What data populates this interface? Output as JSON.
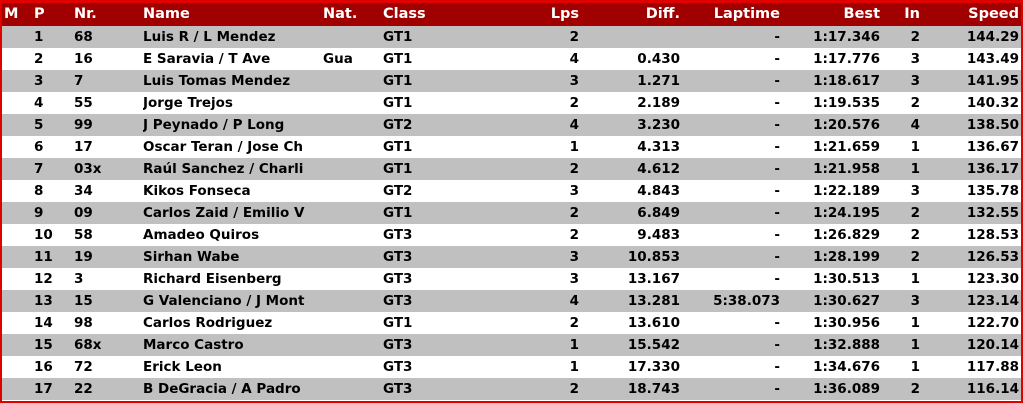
{
  "colors": {
    "header_bg": "#a00000",
    "border": "#e00000",
    "row_alt": "#c0c0c0",
    "marker": "#22cc22"
  },
  "headers": {
    "m": "M",
    "p": "P",
    "nr": "Nr.",
    "name": "Name",
    "nat": "Nat.",
    "class": "Class",
    "lps": "Lps",
    "diff": "Diff.",
    "laptime": "Laptime",
    "best": "Best",
    "in": "In",
    "speed": "Speed"
  },
  "rows": [
    {
      "marker": false,
      "p": "1",
      "nr": "68",
      "name": "Luis R / L Mendez",
      "nat": "",
      "class": "GT1",
      "lps": "2",
      "diff": "",
      "laptime": "-",
      "best": "1:17.346",
      "in": "2",
      "speed": "144.29"
    },
    {
      "marker": false,
      "p": "2",
      "nr": "16",
      "name": "E Saravia / T Ave",
      "nat": "Gua",
      "class": "GT1",
      "lps": "4",
      "diff": "0.430",
      "laptime": "-",
      "best": "1:17.776",
      "in": "3",
      "speed": "143.49"
    },
    {
      "marker": false,
      "p": "3",
      "nr": "7",
      "name": "Luis Tomas Mendez",
      "nat": "",
      "class": "GT1",
      "lps": "3",
      "diff": "1.271",
      "laptime": "-",
      "best": "1:18.617",
      "in": "3",
      "speed": "141.95"
    },
    {
      "marker": false,
      "p": "4",
      "nr": "55",
      "name": "Jorge Trejos",
      "nat": "",
      "class": "GT1",
      "lps": "2",
      "diff": "2.189",
      "laptime": "-",
      "best": "1:19.535",
      "in": "2",
      "speed": "140.32"
    },
    {
      "marker": false,
      "p": "5",
      "nr": "99",
      "name": "J Peynado / P Long",
      "nat": "",
      "class": "GT2",
      "lps": "4",
      "diff": "3.230",
      "laptime": "-",
      "best": "1:20.576",
      "in": "4",
      "speed": "138.50"
    },
    {
      "marker": false,
      "p": "6",
      "nr": "17",
      "name": "Oscar Teran / Jose Ch",
      "nat": "",
      "class": "GT1",
      "lps": "1",
      "diff": "4.313",
      "laptime": "-",
      "best": "1:21.659",
      "in": "1",
      "speed": "136.67"
    },
    {
      "marker": false,
      "p": "7",
      "nr": "03x",
      "name": "Raúl Sanchez / Charli",
      "nat": "",
      "class": "GT1",
      "lps": "2",
      "diff": "4.612",
      "laptime": "-",
      "best": "1:21.958",
      "in": "1",
      "speed": "136.17"
    },
    {
      "marker": false,
      "p": "8",
      "nr": "34",
      "name": "Kikos Fonseca",
      "nat": "",
      "class": "GT2",
      "lps": "3",
      "diff": "4.843",
      "laptime": "-",
      "best": "1:22.189",
      "in": "3",
      "speed": "135.78"
    },
    {
      "marker": false,
      "p": "9",
      "nr": "09",
      "name": "Carlos Zaid / Emilio V",
      "nat": "",
      "class": "GT1",
      "lps": "2",
      "diff": "6.849",
      "laptime": "-",
      "best": "1:24.195",
      "in": "2",
      "speed": "132.55"
    },
    {
      "marker": false,
      "p": "10",
      "nr": "58",
      "name": "Amadeo Quiros",
      "nat": "",
      "class": "GT3",
      "lps": "2",
      "diff": "9.483",
      "laptime": "-",
      "best": "1:26.829",
      "in": "2",
      "speed": "128.53"
    },
    {
      "marker": false,
      "p": "11",
      "nr": "19",
      "name": "Sirhan Wabe",
      "nat": "",
      "class": "GT3",
      "lps": "3",
      "diff": "10.853",
      "laptime": "-",
      "best": "1:28.199",
      "in": "2",
      "speed": "126.53"
    },
    {
      "marker": false,
      "p": "12",
      "nr": "3",
      "name": "Richard Eisenberg",
      "nat": "",
      "class": "GT3",
      "lps": "3",
      "diff": "13.167",
      "laptime": "-",
      "best": "1:30.513",
      "in": "1",
      "speed": "123.30"
    },
    {
      "marker": true,
      "p": "13",
      "nr": "15",
      "name": "G Valenciano / J Mont",
      "nat": "",
      "class": "GT3",
      "lps": "4",
      "diff": "13.281",
      "laptime": "5:38.073",
      "best": "1:30.627",
      "in": "3",
      "speed": "123.14"
    },
    {
      "marker": false,
      "p": "14",
      "nr": "98",
      "name": "Carlos Rodriguez",
      "nat": "",
      "class": "GT1",
      "lps": "2",
      "diff": "13.610",
      "laptime": "-",
      "best": "1:30.956",
      "in": "1",
      "speed": "122.70"
    },
    {
      "marker": false,
      "p": "15",
      "nr": "68x",
      "name": "Marco Castro",
      "nat": "",
      "class": "GT3",
      "lps": "1",
      "diff": "15.542",
      "laptime": "-",
      "best": "1:32.888",
      "in": "1",
      "speed": "120.14"
    },
    {
      "marker": false,
      "p": "16",
      "nr": "72",
      "name": "Erick Leon",
      "nat": "",
      "class": "GT3",
      "lps": "1",
      "diff": "17.330",
      "laptime": "-",
      "best": "1:34.676",
      "in": "1",
      "speed": "117.88"
    },
    {
      "marker": false,
      "p": "17",
      "nr": "22",
      "name": "B DeGracia /  A Padro",
      "nat": "",
      "class": "GT3",
      "lps": "2",
      "diff": "18.743",
      "laptime": "-",
      "best": "1:36.089",
      "in": "2",
      "speed": "116.14"
    }
  ]
}
